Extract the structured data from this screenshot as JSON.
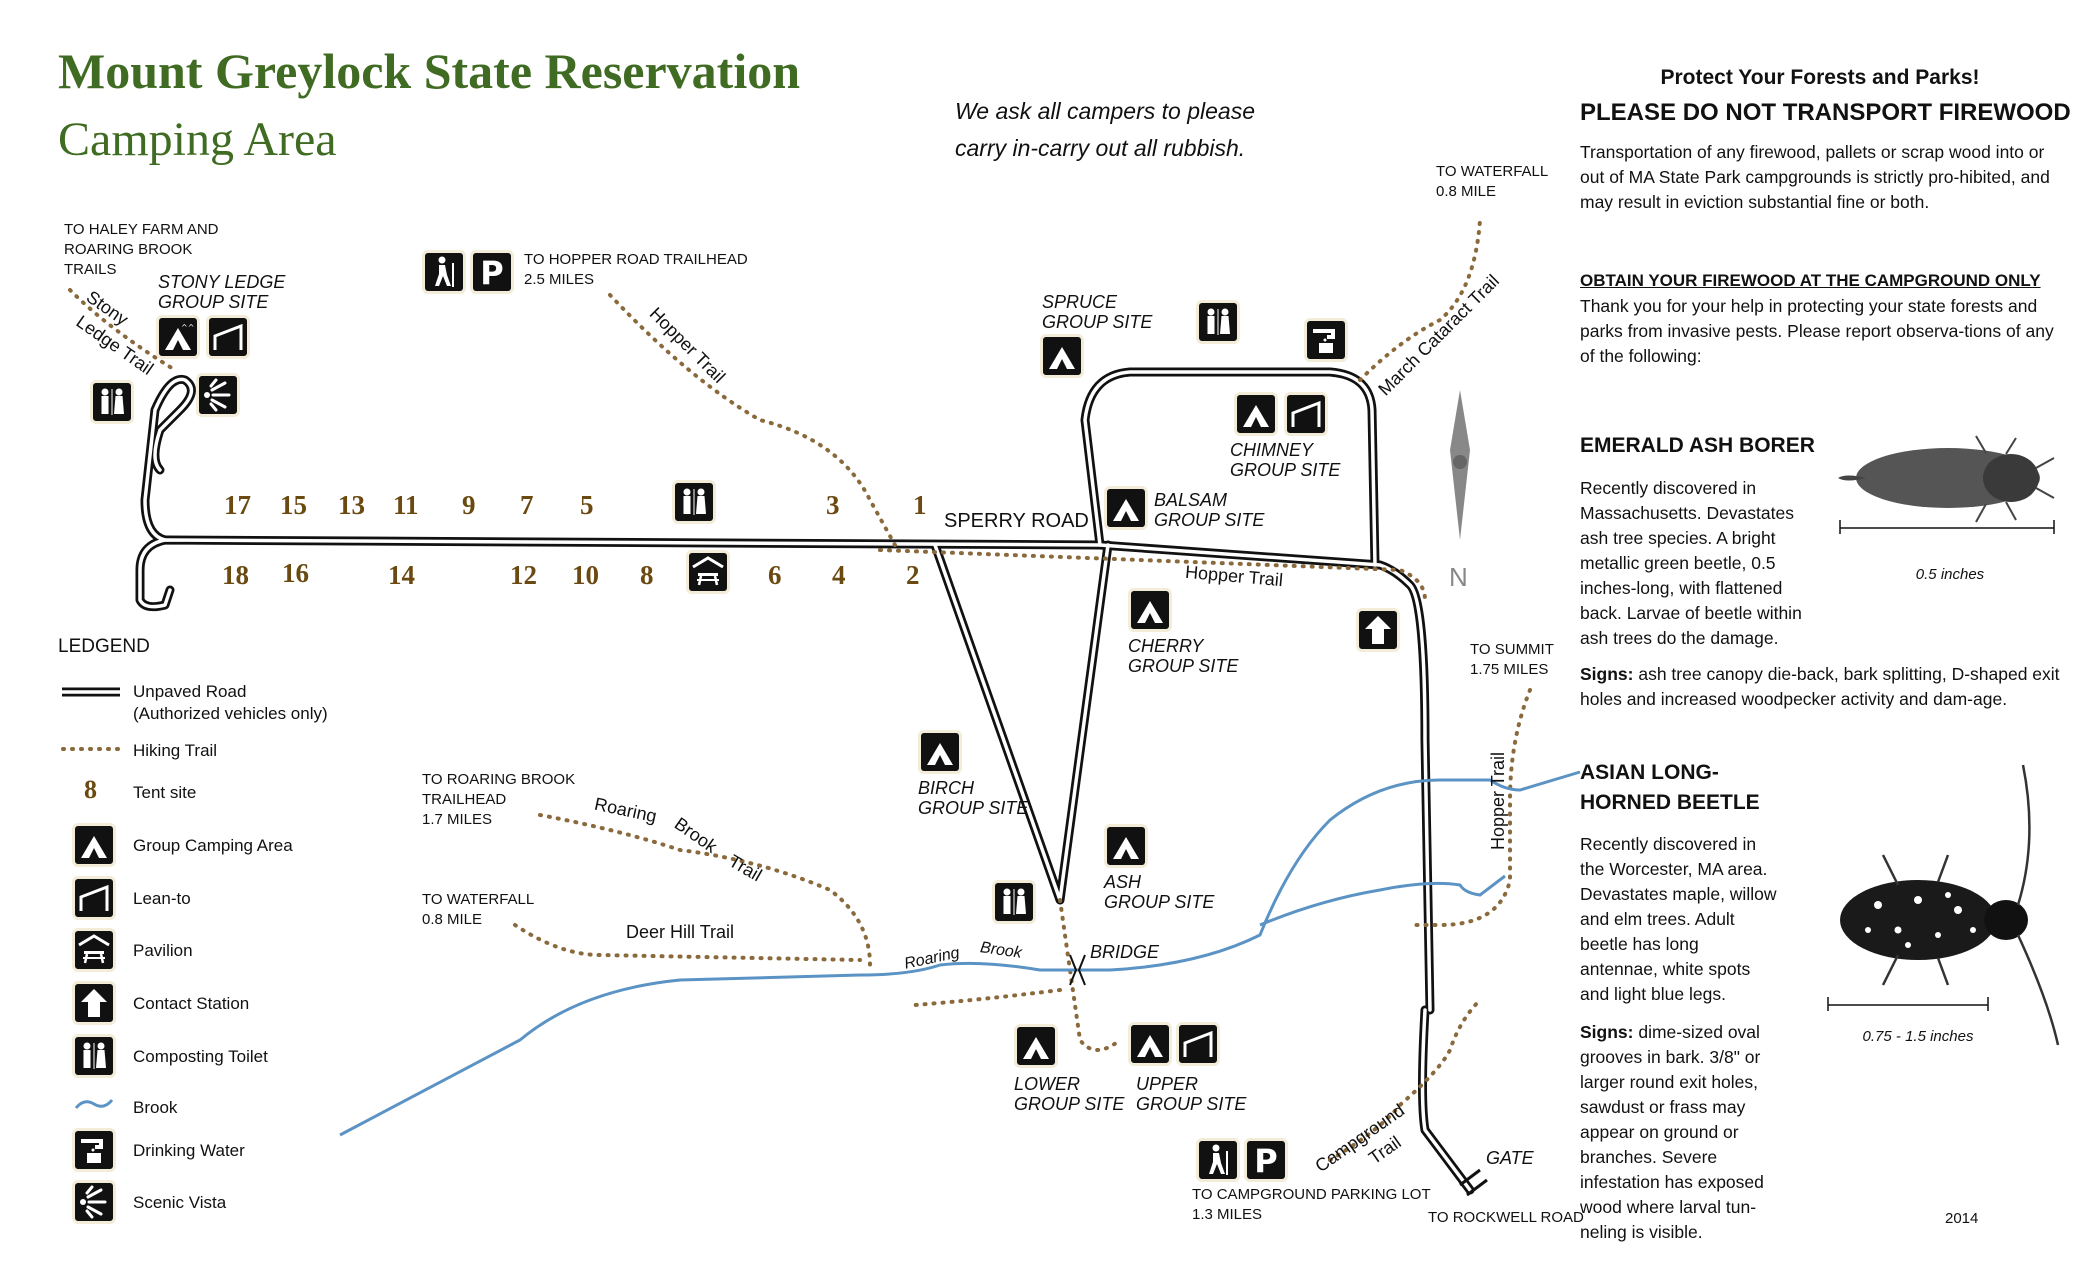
{
  "header": {
    "title": "Mount Greylock State Reservation",
    "subtitle": "Camping Area",
    "note_line1": "We ask all campers to please",
    "note_line2": "carry in-carry out all rubbish."
  },
  "destinations": {
    "haley_farm": "TO HALEY FARM AND\nROARING BROOK\nTRAILS",
    "hopper_road": "TO HOPPER ROAD TRAILHEAD\n2.5 MILES",
    "waterfall_ne": "TO WATERFALL\n0.8 MILE",
    "summit": "TO SUMMIT\n1.75 MILES",
    "roaring_brook_th": "TO ROARING BROOK\nTRAILHEAD\n1.7 MILES",
    "waterfall_w": "TO WATERFALL\n0.8 MILE",
    "parking_lot": "TO CAMPGROUND PARKING LOT\n1.3 MILES",
    "rockwell": "TO ROCKWELL ROAD"
  },
  "sites": {
    "stony_ledge": "STONY LEDGE\nGROUP SITE",
    "spruce": "SPRUCE\nGROUP SITE",
    "chimney": "CHIMNEY\nGROUP SITE",
    "balsam": "BALSAM\nGROUP SITE",
    "cherry": "CHERRY\nGROUP SITE",
    "birch": "BIRCH\nGROUP SITE",
    "ash": "ASH\nGROUP SITE",
    "lower": "LOWER\nGROUP SITE",
    "upper": "UPPER\nGROUP SITE"
  },
  "roads": {
    "sperry": "SPERRY ROAD",
    "bridge": "BRIDGE",
    "gate": "GATE",
    "north": "N"
  },
  "trails": {
    "stony": "Stony",
    "ledge": "Ledge Trail",
    "hopper_nw": "Hopper Trail",
    "hopper_e": "Hopper Trail",
    "hopper_se": "Hopper Trail",
    "march_cataract": "March Cataract Trail",
    "roaring": "Roaring",
    "brook": "Brook",
    "trail_rb": "Trail",
    "deer_hill": "Deer Hill Trail",
    "brook_roaring": "Roaring",
    "brook_brook": "Brook",
    "campground": "Campground",
    "campground_trail": "Trail"
  },
  "tent_sites": {
    "top": [
      "17",
      "15",
      "13",
      "11",
      "9",
      "7",
      "5",
      "3",
      "1"
    ],
    "bottom": [
      "18",
      "16",
      "14",
      "12",
      "10",
      "8",
      "6",
      "4",
      "2"
    ]
  },
  "legend": {
    "title": "LEDGEND",
    "items": [
      {
        "icon": "unpaved-road",
        "label": "Unpaved Road\n(Authorized vehicles only)"
      },
      {
        "icon": "hiking-trail",
        "label": "Hiking Trail"
      },
      {
        "icon": "tent-site",
        "label": "Tent site",
        "sample": "8"
      },
      {
        "icon": "group-camping-icon",
        "label": "Group Camping Area"
      },
      {
        "icon": "lean-to-icon",
        "label": "Lean-to"
      },
      {
        "icon": "pavilion-icon",
        "label": "Pavilion"
      },
      {
        "icon": "contact-station-icon",
        "label": "Contact Station"
      },
      {
        "icon": "composting-toilet-icon",
        "label": "Composting Toilet"
      },
      {
        "icon": "brook-icon",
        "label": "Brook"
      },
      {
        "icon": "drinking-water-icon",
        "label": "Drinking Water"
      },
      {
        "icon": "scenic-vista-icon",
        "label": "Scenic Vista"
      }
    ]
  },
  "panel": {
    "heading1": "Protect Your Forests and Parks!",
    "heading2": "PLEASE DO NOT TRANSPORT FIREWOOD",
    "p1": "Transportation of any firewood, pallets or scrap wood into or out of MA State Park campgrounds is strictly pro-hibited, and may result in eviction substantial fine or both.",
    "sub": "OBTAIN YOUR FIREWOOD AT THE CAMPGROUND ONLY",
    "p2": "Thank you for your help in protecting your state forests and parks from invasive pests. Please report observa-tions of any of the following:",
    "eab_title": "EMERALD ASH BORER",
    "eab_body": "Recently discovered in Massachusetts. Devastates ash tree species. A bright metallic green beetle, 0.5 inches-long, with flattened back. Larvae of beetle within ash trees do the damage.",
    "eab_signs_label": "Signs:",
    "eab_signs": " ash tree canopy die-back, bark splitting, D-shaped exit holes and increased woodpecker activity and dam-age.",
    "eab_scale": "0.5 inches",
    "alb_title": "ASIAN LONG-\nHORNED BEETLE",
    "alb_body": "Recently discovered in the Worcester, MA area. Devastates maple, willow and elm trees. Adult beetle has long antennae, white spots and light blue legs.",
    "alb_signs_label": "Signs:",
    "alb_signs": " dime-sized oval grooves in bark. 3/8\" or larger round exit holes, sawdust or frass may appear on ground or branches. Severe infestation has exposed wood where larval tun-neling is visible.",
    "alb_scale": "0.75 - 1.5 inches",
    "year": "2014"
  },
  "colors": {
    "title_green": "#3f6b22",
    "trail_brown": "#8a6a3c",
    "brook_blue": "#5b93c4",
    "tent_brown": "#6b4a12"
  }
}
